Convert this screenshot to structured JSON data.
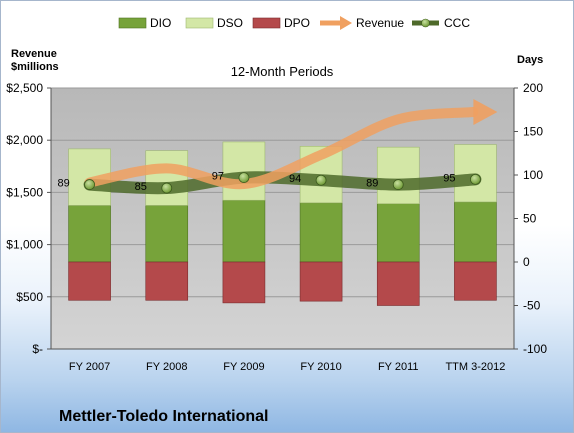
{
  "chart_data": {
    "type": "bar",
    "title": "12-Month Periods",
    "company": "Mettler-Toledo International",
    "left_axis": {
      "label_line1": "Revenue",
      "label_line2": "$millions",
      "ylim": [
        0,
        2500
      ],
      "ticks": [
        0,
        500,
        1000,
        1500,
        2000,
        2500
      ],
      "tick_labels": [
        "$-",
        "$500",
        "$1,000",
        "$1,500",
        "$2,000",
        "$2,500"
      ]
    },
    "right_axis": {
      "label": "Days",
      "ylim": [
        -100,
        200
      ],
      "ticks": [
        -100,
        -50,
        0,
        50,
        100,
        150,
        200
      ],
      "tick_labels": [
        "-100",
        "-50",
        "0",
        "50",
        "100",
        "150",
        "200"
      ]
    },
    "categories": [
      "FY 2007",
      "FY 2008",
      "FY 2009",
      "FY 2010",
      "FY 2011",
      "TTM 3-2012"
    ],
    "legend": [
      "DIO",
      "DSO",
      "DPO",
      "Revenue",
      "CCC"
    ],
    "legend_position": "top",
    "grid": "horizontal",
    "series": [
      {
        "name": "DIO",
        "axis": "right",
        "values": [
          65,
          65,
          71,
          68,
          67,
          69
        ]
      },
      {
        "name": "DSO",
        "axis": "right",
        "values": [
          65,
          63,
          67,
          65,
          65,
          66
        ]
      },
      {
        "name": "DPO",
        "axis": "right",
        "values": [
          -44,
          -44,
          -47,
          -45,
          -50,
          -44
        ]
      },
      {
        "name": "Revenue",
        "axis": "left",
        "values": [
          1595,
          1730,
          1580,
          1860,
          2200,
          2270
        ]
      },
      {
        "name": "CCC",
        "axis": "right",
        "values": [
          89,
          85,
          97,
          94,
          89,
          95
        ]
      }
    ],
    "ccc_labels": [
      "89",
      "85",
      "97",
      "94",
      "89",
      "95"
    ],
    "colors": {
      "DIO": "#77a33a",
      "DSO": "#d3e7a6",
      "DPO": "#b4494b",
      "Revenue": "#f0a060",
      "CCC": "#4e6a2a",
      "plot_bg": "#c0c0c0"
    }
  }
}
